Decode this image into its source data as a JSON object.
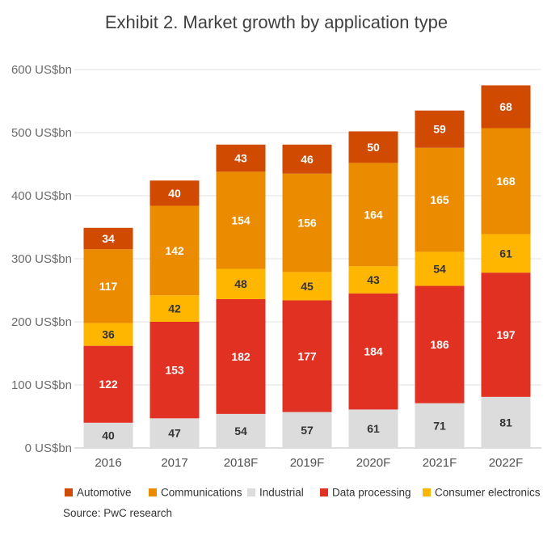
{
  "chart_data": {
    "type": "bar",
    "stacked": true,
    "title": "Exhibit 2. Market growth by application type",
    "xlabel": "",
    "ylabel": "",
    "ylim": [
      0,
      600
    ],
    "y_ticks": [
      0,
      100,
      200,
      300,
      400,
      500,
      600
    ],
    "y_tick_suffix": " US$bn",
    "categories": [
      "2016",
      "2017",
      "2018F",
      "2019F",
      "2020F",
      "2021F",
      "2022F"
    ],
    "series": [
      {
        "name": "Industrial",
        "color": "#dcdcdc",
        "label_color": "#333333",
        "values": [
          40,
          47,
          54,
          57,
          61,
          71,
          81
        ]
      },
      {
        "name": "Data processing",
        "color": "#e03123",
        "label_color": "#ffffff",
        "values": [
          122,
          153,
          182,
          177,
          184,
          186,
          197
        ]
      },
      {
        "name": "Consumer electronics",
        "color": "#ffb600",
        "label_color": "#333333",
        "values": [
          36,
          42,
          48,
          45,
          43,
          54,
          61
        ]
      },
      {
        "name": "Communications",
        "color": "#eb8c00",
        "label_color": "#ffffff",
        "values": [
          117,
          142,
          154,
          156,
          164,
          165,
          168
        ]
      },
      {
        "name": "Automotive",
        "color": "#d04a02",
        "label_color": "#ffffff",
        "values": [
          34,
          40,
          43,
          46,
          50,
          59,
          68
        ]
      }
    ],
    "legend": {
      "position": "bottom",
      "order": [
        "Automotive",
        "Communications",
        "Industrial",
        "Data processing",
        "Consumer electronics"
      ]
    },
    "grid": true,
    "source": "Source: PwC research"
  }
}
